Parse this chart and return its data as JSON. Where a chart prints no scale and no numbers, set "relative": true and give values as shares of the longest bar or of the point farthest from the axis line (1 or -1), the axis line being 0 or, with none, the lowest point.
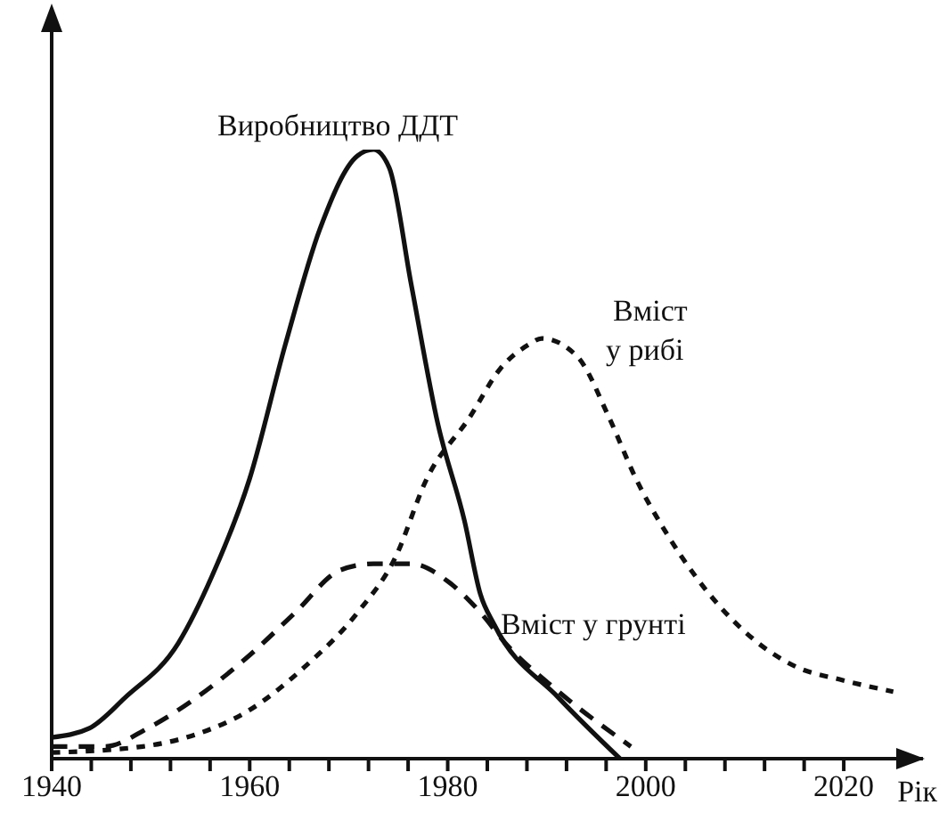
{
  "chart_data": {
    "type": "line",
    "relative": true,
    "xlabel": "Рік",
    "legend": false,
    "grid": false,
    "marker": "none",
    "xlim": [
      1940,
      2028
    ],
    "xticks": [
      1940,
      {
        "value": 1944,
        "label": null
      },
      {
        "value": 1948,
        "label": null
      },
      {
        "value": 1952,
        "label": null
      },
      {
        "value": 1956,
        "label": null
      },
      1960,
      {
        "value": 1964,
        "label": null
      },
      {
        "value": 1968,
        "label": null
      },
      {
        "value": 1972,
        "label": null
      },
      {
        "value": 1976,
        "label": null
      },
      1980,
      {
        "value": 1984,
        "label": null
      },
      {
        "value": 1988,
        "label": null
      },
      {
        "value": 1992,
        "label": null
      },
      {
        "value": 1996,
        "label": null
      },
      2000,
      {
        "value": 2004,
        "label": null
      },
      {
        "value": 2008,
        "label": null
      },
      {
        "value": 2012,
        "label": null
      },
      {
        "value": 2016,
        "label": null
      },
      2020
    ],
    "series": [
      {
        "name": "Виробництво ДДТ",
        "color": "#111111",
        "line_style": "solid",
        "x": [
          1940,
          1943.8,
          1947.4,
          1952.8,
          1956.2,
          1960,
          1963.6,
          1967.1,
          1970.9,
          1972.5,
          1974.1,
          1976.3,
          1979,
          1981.7,
          1983.3,
          1984.7,
          1991.2,
          1997.4
        ],
        "values": [
          0.035,
          0.05,
          0.1,
          0.19,
          0.3,
          0.46,
          0.68,
          0.87,
          0.99,
          1,
          0.97,
          0.78,
          0.55,
          0.39,
          0.27,
          0.22,
          0.1,
          0
        ]
      },
      {
        "name": "Вміст у рибі",
        "color": "#111111",
        "line_style": "dotted",
        "x": [
          1940,
          1949.2,
          1954.6,
          1960,
          1965.5,
          1970.9,
          1974.7,
          1977.9,
          1982.2,
          1985.3,
          1988.2,
          1989.5,
          1993.1,
          1996.3,
          1999,
          2002.1,
          2005,
          2009.9,
          2015.3,
          2019.6,
          2025
        ],
        "values": [
          0.01,
          0.02,
          0.04,
          0.08,
          0.15,
          0.24,
          0.33,
          0.46,
          0.56,
          0.64,
          0.68,
          0.69,
          0.66,
          0.56,
          0.46,
          0.37,
          0.3,
          0.21,
          0.15,
          0.13,
          0.11
        ]
      },
      {
        "name": "Вміст у грунті",
        "color": "#111111",
        "line_style": "dashed",
        "x": [
          1940,
          1945.4,
          1949.7,
          1954.6,
          1960,
          1964.6,
          1969.2,
          1972.5,
          1976.3,
          1980.1,
          1983.3,
          1985.8,
          1991.2,
          1998.5
        ],
        "values": [
          0.02,
          0.02,
          0.05,
          0.1,
          0.17,
          0.24,
          0.31,
          0.32,
          0.32,
          0.29,
          0.24,
          0.19,
          0.11,
          0.02
        ]
      }
    ]
  }
}
